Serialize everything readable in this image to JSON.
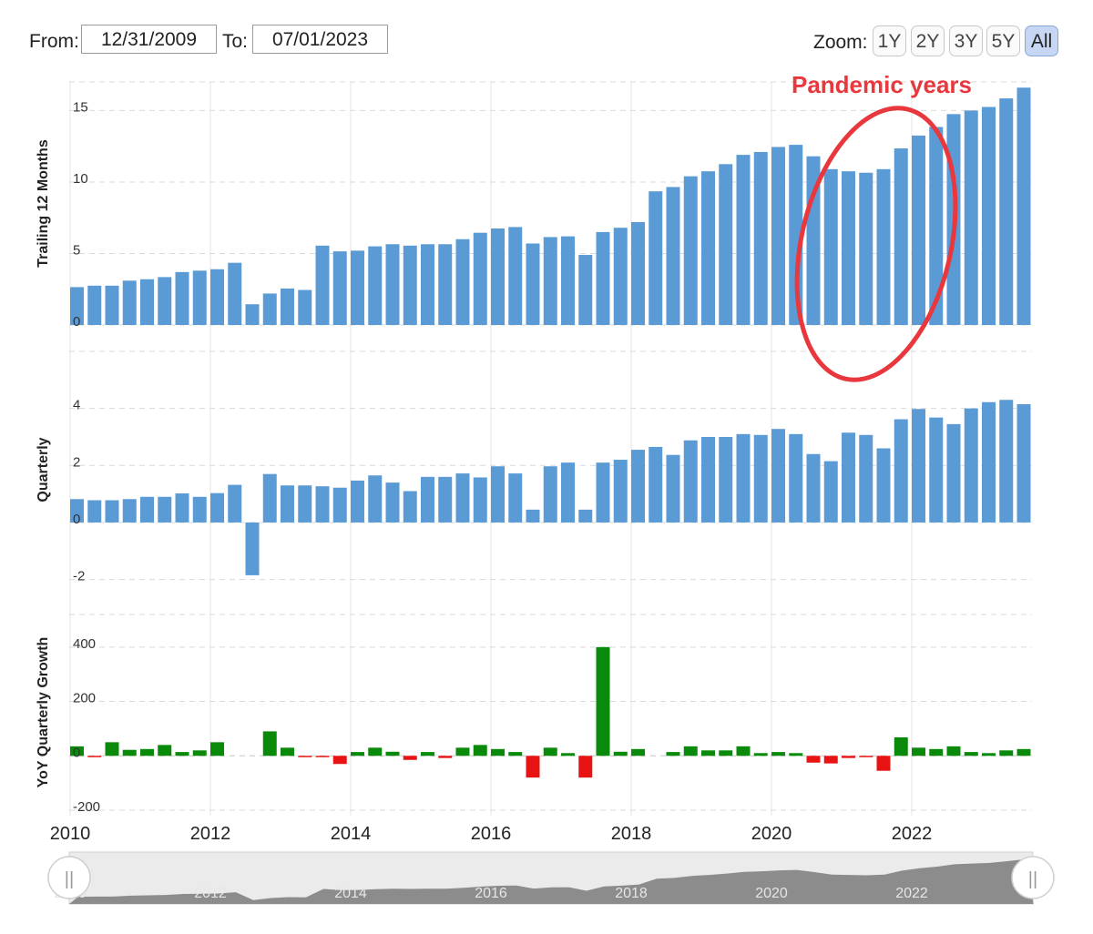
{
  "range": {
    "from_label": "From:",
    "from_value": "12/31/2009",
    "to_label": "To:",
    "to_value": "07/01/2023"
  },
  "zoom": {
    "label": "Zoom:",
    "buttons": [
      "1Y",
      "2Y",
      "3Y",
      "5Y",
      "All"
    ],
    "active": "All"
  },
  "annotation": {
    "text": "Pandemic years",
    "color": "#e8383d"
  },
  "colors": {
    "bar": "#5b9bd5",
    "positive": "#0a8a0a",
    "negative": "#e81414",
    "grid": "#d9d9d9",
    "navigator_fill": "#8c8c8c"
  },
  "chart_data": [
    {
      "type": "bar",
      "ylabel": "Trailing 12 Months",
      "yticks": [
        0,
        5,
        10,
        15
      ],
      "ylim": [
        0,
        17
      ],
      "start_year": 2010,
      "quarters_per_year": 4,
      "values": [
        2.65,
        2.75,
        2.75,
        3.1,
        3.2,
        3.35,
        3.7,
        3.8,
        3.9,
        4.35,
        1.45,
        2.2,
        2.55,
        2.45,
        5.55,
        5.15,
        5.2,
        5.5,
        5.65,
        5.55,
        5.65,
        5.65,
        6.0,
        6.45,
        6.75,
        6.85,
        5.7,
        6.15,
        6.2,
        4.9,
        6.5,
        6.8,
        7.2,
        9.35,
        9.65,
        10.4,
        10.75,
        11.25,
        11.9,
        12.1,
        12.45,
        12.6,
        11.8,
        10.9,
        10.75,
        10.65,
        10.9,
        12.35,
        13.25,
        13.85,
        14.75,
        15.0,
        15.25,
        15.85,
        16.6
      ]
    },
    {
      "type": "bar",
      "ylabel": "Quarterly",
      "yticks": [
        -2,
        0,
        2,
        4
      ],
      "ylim": [
        -2.3,
        6
      ],
      "start_year": 2010,
      "quarters_per_year": 4,
      "values": [
        0.82,
        0.78,
        0.78,
        0.82,
        0.9,
        0.9,
        1.02,
        0.9,
        1.03,
        1.32,
        -1.85,
        1.7,
        1.3,
        1.3,
        1.27,
        1.22,
        1.47,
        1.65,
        1.4,
        1.1,
        1.6,
        1.6,
        1.72,
        1.58,
        1.97,
        1.72,
        0.45,
        1.97,
        2.1,
        0.45,
        2.1,
        2.2,
        2.55,
        2.65,
        2.37,
        2.88,
        3.0,
        3.0,
        3.1,
        3.07,
        3.28,
        3.1,
        2.4,
        2.15,
        3.15,
        3.07,
        2.6,
        3.62,
        3.98,
        3.68,
        3.45,
        4.0,
        4.22,
        4.3,
        4.15
      ]
    },
    {
      "type": "bar",
      "ylabel": "YoY Quarterly Growth",
      "yticks": [
        -200,
        0,
        200,
        400
      ],
      "ylim": [
        -200,
        520
      ],
      "start_year": 2010,
      "quarters_per_year": 4,
      "values": [
        35,
        -5,
        50,
        22,
        25,
        40,
        14,
        20,
        50,
        0,
        0,
        90,
        30,
        -5,
        -5,
        -30,
        14,
        30,
        15,
        -15,
        14,
        -8,
        30,
        40,
        25,
        14,
        -80,
        30,
        10,
        -80,
        400,
        15,
        25,
        0,
        14,
        35,
        20,
        20,
        35,
        10,
        14,
        10,
        -25,
        -28,
        -8,
        -5,
        -55,
        68,
        30,
        25,
        35,
        14,
        10,
        20,
        25
      ]
    }
  ],
  "x_axis": {
    "labels": [
      "2010",
      "2012",
      "2014",
      "2016",
      "2018",
      "2020",
      "2022"
    ],
    "label_years": [
      2010,
      2012,
      2014,
      2016,
      2018,
      2020,
      2022
    ]
  },
  "navigator": {
    "labels": [
      "2010",
      "2012",
      "2014",
      "2016",
      "2018",
      "2020",
      "2022"
    ],
    "left_handle": "||",
    "right_handle": "||"
  }
}
